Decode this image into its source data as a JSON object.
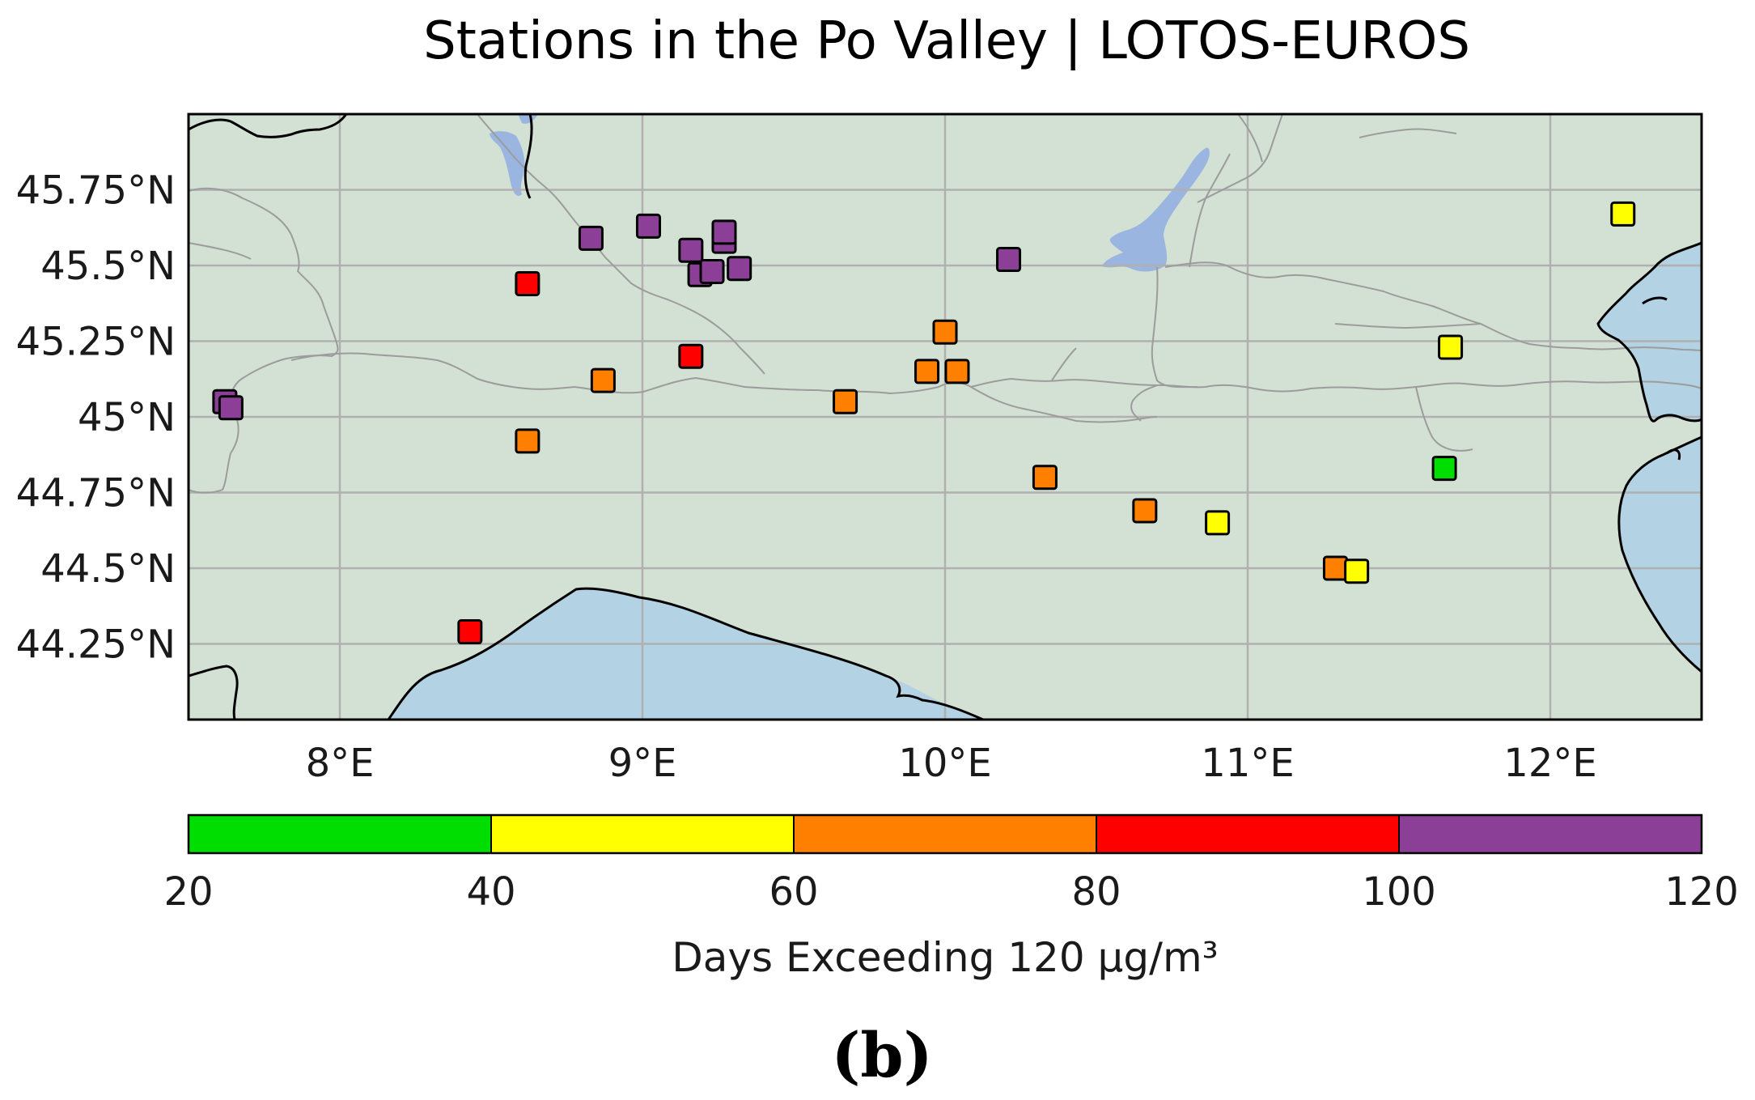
{
  "title": "Stations in the Po Valley | LOTOS-EUROS",
  "panel_label": "(b)",
  "colors": {
    "land": "#d3e0d4",
    "sea": "#b3d2e4",
    "lake": "#9ab6e0",
    "grid": "#b0b0b0",
    "border": "#9c9c9c",
    "coast": "#000000"
  },
  "chart_data": {
    "type": "scatter",
    "title": "Stations in the Po Valley | LOTOS-EUROS",
    "xlim": [
      7.5,
      12.5
    ],
    "ylim": [
      44.0,
      46.0
    ],
    "x_ticks": [
      8,
      9,
      10,
      11,
      12
    ],
    "x_tick_labels": [
      "8°E",
      "9°E",
      "10°E",
      "11°E",
      "12°E"
    ],
    "y_ticks": [
      44.25,
      44.5,
      44.75,
      45.0,
      45.25,
      45.5,
      45.75
    ],
    "y_tick_labels": [
      "44.25°N",
      "44.5°N",
      "44.75°N",
      "45°N",
      "45.25°N",
      "45.5°N",
      "45.75°N"
    ],
    "grid": true,
    "colorbar": {
      "label": "Days Exceeding 120 µg/m³",
      "bounds": [
        20,
        40,
        60,
        80,
        100,
        120
      ],
      "tick_labels": [
        "20",
        "40",
        "60",
        "80",
        "100",
        "120"
      ],
      "colors": [
        "#00dd00",
        "#ffff00",
        "#ff8000",
        "#ff0000",
        "#8b3f96"
      ]
    },
    "stations": [
      {
        "lon": 7.62,
        "lat": 45.05,
        "category": "100-120"
      },
      {
        "lon": 7.64,
        "lat": 45.03,
        "category": "100-120"
      },
      {
        "lon": 8.62,
        "lat": 45.44,
        "category": "80-100"
      },
      {
        "lon": 8.62,
        "lat": 44.92,
        "category": "60-80"
      },
      {
        "lon": 8.43,
        "lat": 44.29,
        "category": "80-100"
      },
      {
        "lon": 8.83,
        "lat": 45.59,
        "category": "100-120"
      },
      {
        "lon": 8.87,
        "lat": 45.12,
        "category": "60-80"
      },
      {
        "lon": 9.02,
        "lat": 45.63,
        "category": "100-120"
      },
      {
        "lon": 9.16,
        "lat": 45.55,
        "category": "100-120"
      },
      {
        "lon": 9.16,
        "lat": 45.2,
        "category": "80-100"
      },
      {
        "lon": 9.19,
        "lat": 45.47,
        "category": "100-120"
      },
      {
        "lon": 9.23,
        "lat": 45.48,
        "category": "100-120"
      },
      {
        "lon": 9.27,
        "lat": 45.58,
        "category": "100-120"
      },
      {
        "lon": 9.27,
        "lat": 45.61,
        "category": "100-120"
      },
      {
        "lon": 9.32,
        "lat": 45.49,
        "category": "100-120"
      },
      {
        "lon": 9.67,
        "lat": 45.05,
        "category": "60-80"
      },
      {
        "lon": 9.94,
        "lat": 45.15,
        "category": "60-80"
      },
      {
        "lon": 10.0,
        "lat": 45.28,
        "category": "60-80"
      },
      {
        "lon": 10.04,
        "lat": 45.15,
        "category": "60-80"
      },
      {
        "lon": 10.21,
        "lat": 45.52,
        "category": "100-120"
      },
      {
        "lon": 10.33,
        "lat": 44.8,
        "category": "60-80"
      },
      {
        "lon": 10.66,
        "lat": 44.69,
        "category": "60-80"
      },
      {
        "lon": 10.9,
        "lat": 44.65,
        "category": "40-60"
      },
      {
        "lon": 11.29,
        "lat": 44.5,
        "category": "60-80"
      },
      {
        "lon": 11.36,
        "lat": 44.49,
        "category": "40-60"
      },
      {
        "lon": 11.67,
        "lat": 45.23,
        "category": "40-60"
      },
      {
        "lon": 11.65,
        "lat": 44.83,
        "category": "20-40"
      },
      {
        "lon": 12.24,
        "lat": 45.67,
        "category": "40-60"
      }
    ]
  }
}
